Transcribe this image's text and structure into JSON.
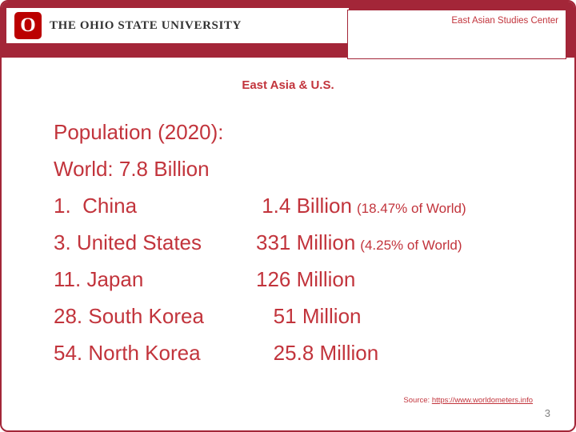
{
  "colors": {
    "header_bar": "#A32638",
    "logo_scarlet": "#BB0000",
    "text_red": "#C2343C",
    "page_number_gray": "#808080"
  },
  "header": {
    "logo_letter": "O",
    "university": "THE OHIO STATE UNIVERSITY",
    "center": "East Asian Studies Center"
  },
  "slide": {
    "title": "East Asia & U.S.",
    "lines": [
      {
        "label": "Population (2020):",
        "value": "",
        "note": ""
      },
      {
        "label": "World: 7.8 Billion",
        "value": "",
        "note": ""
      },
      {
        "label": "1.  China",
        "value": " 1.4 Billion",
        "note": "(18.47% of World)"
      },
      {
        "label": "3. United States",
        "value": "331 Million",
        "note": "(4.25% of World)"
      },
      {
        "label": "11. Japan",
        "value": "126 Million",
        "note": ""
      },
      {
        "label": "28. South Korea",
        "value": "   51 Million",
        "note": ""
      },
      {
        "label": "54. North Korea",
        "value": "   25.8 Million",
        "note": ""
      }
    ]
  },
  "footer": {
    "source_label": "Source:",
    "source_link": "https://www.worldometers.info",
    "page_number": "3"
  }
}
